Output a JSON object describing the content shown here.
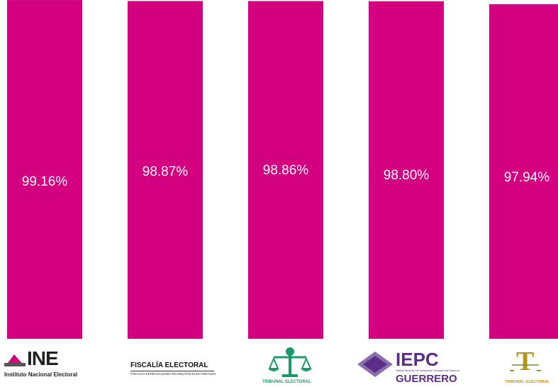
{
  "chart_data": {
    "type": "bar",
    "categories": [
      "INE",
      "FISCALÍA ELECTORAL",
      "TRIBUNAL ELECTORAL",
      "IEPC GUERRERO",
      "TRIBUNAL ELECTORAL"
    ],
    "values": [
      99.16,
      98.87,
      98.86,
      98.8,
      97.94
    ],
    "value_labels": [
      "99.16%",
      "98.87%",
      "98.86%",
      "98.80%",
      "97.94%"
    ],
    "ylim": [
      0,
      100
    ],
    "grid": false,
    "legend": "none",
    "bar_color": "#d3007f"
  },
  "logos": {
    "ine": {
      "mark": "INE",
      "subtitle": "Instituto Nacional Electoral",
      "icon": "ine-ballot-icon",
      "color": "#d3007f"
    },
    "fiscalia": {
      "title": "FISCALÍA ELECTORAL",
      "subtitle": "FISCALÍA ESPECIALIZADA EN DELITOS ELECTORALES"
    },
    "tribunal": {
      "caption": "TRIBUNAL ELECTORAL",
      "icon": "scales-justice-icon",
      "color": "#1a9a6a"
    },
    "iepc": {
      "mark": "IEPC",
      "small": "Instituto Electoral y de Participación Ciudadana del Estado de",
      "state": "GUERRERO",
      "icon": "iepc-emblem-icon",
      "color": "#5b2d86"
    },
    "tribunal_gold": {
      "mark": "T",
      "caption": "TRIBUNAL ELECTORAL",
      "icon": "gold-t-scales-icon",
      "color": "#b8951a"
    }
  }
}
